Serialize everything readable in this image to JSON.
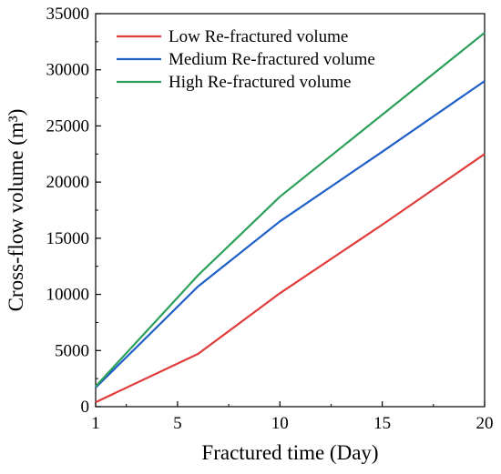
{
  "chart_data": {
    "type": "line",
    "title": "",
    "xlabel": "Fractured time (Day)",
    "ylabel": "Cross-flow volume (m³)",
    "xlim": [
      1,
      20
    ],
    "ylim": [
      0,
      35000
    ],
    "xticks": [
      1,
      5,
      10,
      15,
      20
    ],
    "yticks": [
      0,
      5000,
      10000,
      15000,
      20000,
      25000,
      30000,
      35000
    ],
    "grid": false,
    "legend_position": "top-left",
    "series": [
      {
        "name": "Low Re-fractured volume",
        "color": "#e03c3c",
        "x": [
          1,
          6,
          10,
          15,
          20
        ],
        "y": [
          400,
          4700,
          10100,
          16200,
          22500
        ]
      },
      {
        "name": "Medium Re-fractured volume",
        "color": "#1f5fc8",
        "x": [
          1,
          6,
          10,
          15,
          20
        ],
        "y": [
          1700,
          10700,
          16500,
          22700,
          29000
        ]
      },
      {
        "name": "High Re-fractured volume",
        "color": "#2ca05a",
        "x": [
          1,
          6,
          10,
          15,
          20
        ],
        "y": [
          1800,
          11700,
          18700,
          26000,
          33300
        ]
      }
    ]
  }
}
